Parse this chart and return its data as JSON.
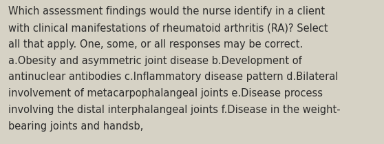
{
  "lines": [
    "Which assessment findings would the nurse identify in a client",
    "with clinical manifestations of rheumatoid arthritis (RA)? Select",
    "all that apply. One, some, or all responses may be correct.",
    "a.Obesity and asymmetric joint disease b.Development of",
    "antinuclear antibodies c.Inflammatory disease pattern d.Bilateral",
    "involvement of metacarpophalangeal joints e.Disease process",
    "involving the distal interphalangeal joints f.Disease in the weight-",
    "bearing joints and handsb,"
  ],
  "background_color": "#d6d2c5",
  "text_color": "#2b2b2b",
  "font_size": 10.5,
  "fig_width": 5.58,
  "fig_height": 2.09,
  "dpi": 100
}
